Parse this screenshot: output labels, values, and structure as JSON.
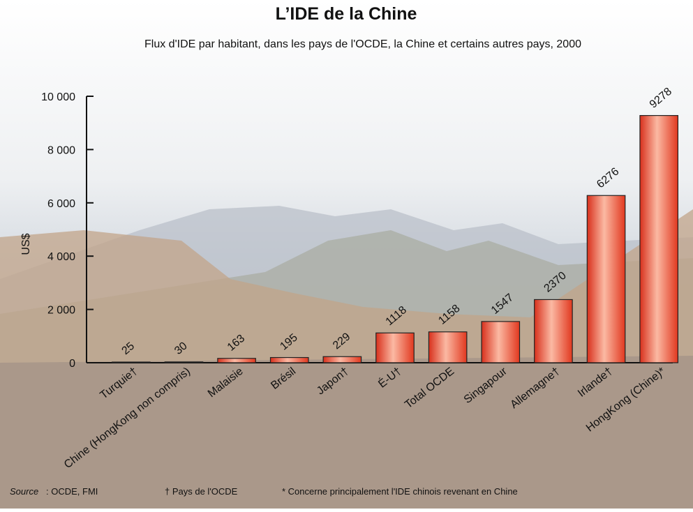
{
  "chart_data": {
    "type": "bar",
    "title": "L’IDE de la Chine",
    "subtitle": "Flux d'IDE par habitant, dans les pays de l'OCDE, la Chine et certains autres pays, 2000",
    "ylabel": "US$",
    "categories": [
      "Turquie†",
      "Chine (HongKong non compris)",
      "Malaisie",
      "Brésil",
      "Japon†",
      "É-U†",
      "Total OCDE",
      "Singapour",
      "Allemagne†",
      "Irlande†",
      "HongKong (Chine)*"
    ],
    "values": [
      25,
      30,
      163,
      195,
      229,
      1118,
      1158,
      1547,
      2370,
      6276,
      9278
    ],
    "color": "#e8442a",
    "ylim": [
      0,
      10000
    ],
    "yticks": [
      0,
      {
        "value": 2000,
        "label": "2 000"
      },
      {
        "value": 4000,
        "label": "4 000"
      },
      {
        "value": 6000,
        "label": "6 000"
      },
      {
        "value": 8000,
        "label": "8 000"
      },
      {
        "value": 10000,
        "label": "10 000"
      }
    ],
    "grid": false,
    "source_label": "Source",
    "source_text": ": OCDE, FMI",
    "footnotes": [
      "† Pays de l'OCDE",
      "* Concerne principalement l'IDE chinois revenant en Chine"
    ]
  }
}
